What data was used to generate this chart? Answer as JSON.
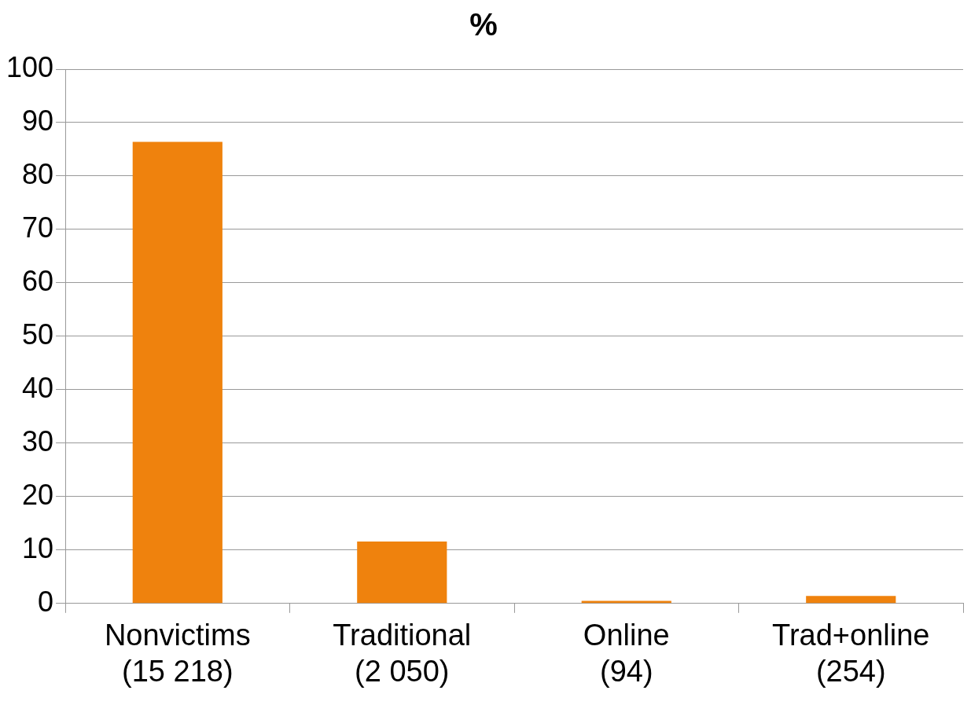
{
  "chart_data": {
    "type": "bar",
    "title": "%",
    "categories": [
      "Nonvictims\n(15 218)",
      "Traditional\n(2 050)",
      "Online\n(94)",
      "Trad+online\n(254)"
    ],
    "values": [
      86.4,
      11.6,
      0.5,
      1.4
    ],
    "color": "#ef820d",
    "ylim": [
      0,
      100
    ],
    "yticks": [
      0,
      10,
      20,
      30,
      40,
      50,
      60,
      70,
      80,
      90,
      100
    ],
    "grid": "y",
    "legend": false
  }
}
